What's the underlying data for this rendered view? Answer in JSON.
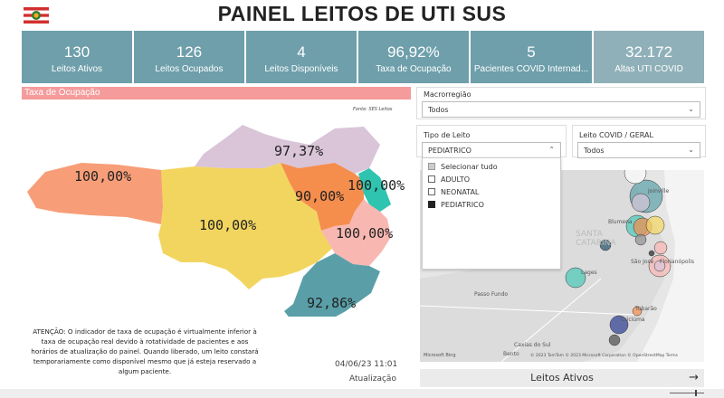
{
  "header": {
    "title": "PAINEL LEITOS DE UTI SUS"
  },
  "kpis": [
    {
      "value": "130",
      "label": "Leitos Ativos"
    },
    {
      "value": "126",
      "label": "Leitos Ocupados"
    },
    {
      "value": "4",
      "label": "Leitos Disponíveis"
    },
    {
      "value": "96,92%",
      "label": "Taxa de Ocupação"
    },
    {
      "value": "5",
      "label": "Pacientes COVID Internad..."
    },
    {
      "value": "32.172",
      "label": "Altas UTI COVID"
    }
  ],
  "section": {
    "title": "Taxa de Ocupação",
    "source": "Fonte: SES Leitos"
  },
  "regions": [
    {
      "name_value": "100,00%",
      "color": "#f79e78"
    },
    {
      "name_value": "100,00%",
      "color": "#f2d55f"
    },
    {
      "name_value": "97,37%",
      "color": "#d9c4d8"
    },
    {
      "name_value": "90,00%",
      "color": "#f58d4d"
    },
    {
      "name_value": "100,00%",
      "color": "#2ec4b0"
    },
    {
      "name_value": "100,00%",
      "color": "#f9b7b2"
    },
    {
      "name_value": "92,86%",
      "color": "#5a9fa8"
    }
  ],
  "notice": "ATENÇÃO: O indicador de taxa de ocupação é virtualmente inferior à taxa de ocupação real devido à rotatividade de pacientes e aos horários de atualização do painel. Quando liberado, um leito constará temporariamente como disponível mesmo que já esteja reservado a algum paciente.",
  "update": {
    "date": "04/06/23 11:01",
    "label": "Atualização"
  },
  "filters": {
    "macro": {
      "label": "Macrorregião",
      "value": "Todos"
    },
    "tipo": {
      "label": "Tipo de Leito",
      "value": "PEDIATRICO",
      "options": [
        "Selecionar tudo",
        "ADULTO",
        "NEONATAL",
        "PEDIATRICO"
      ]
    },
    "covid": {
      "label": "Leito COVID / GERAL",
      "value": "Todos"
    }
  },
  "map_labels": {
    "santa_catarina": "SANTA\nCATARINA",
    "passo_fundo": "Passo Fundo",
    "caxias": "Caxias do Sul",
    "bento": "Bento",
    "gonçalves": "Gonçalves",
    "blumenau": "Blumena",
    "joinville": "Joinville",
    "sao_jose": "São José",
    "florianopolis": "Florianópolis",
    "lages": "Lages",
    "criciuma": "Criciúma",
    "tubarao": "Tubarão",
    "copyright": "© 2023 TomTom © 2023 Microsoft Corporation © OpenStreetMap Terms",
    "bing": "Microsoft Bing"
  },
  "bottom_button": {
    "label": "Leitos Ativos"
  },
  "colors": {
    "kpi": "#6e9fab",
    "section": "#f59b9b"
  }
}
